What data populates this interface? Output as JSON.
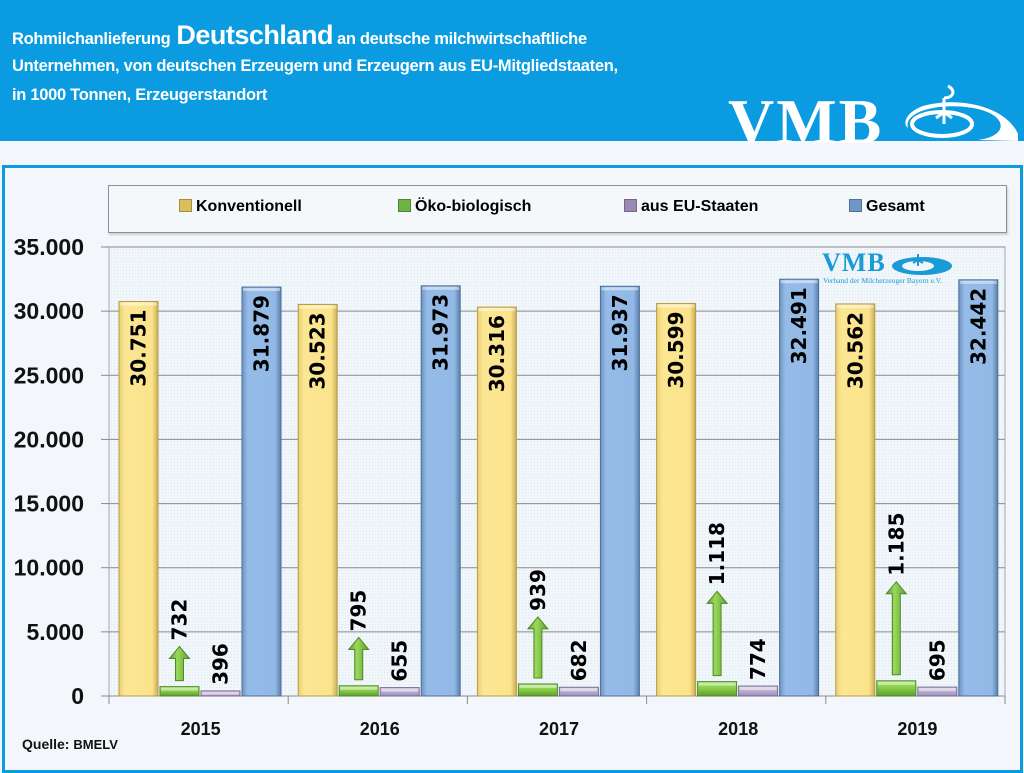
{
  "header": {
    "line1_prefix": "Rohmilchanlieferung",
    "line1_emphasis": "Deutschland",
    "line1_suffix": "an deutsche milchwirtschaftliche",
    "line2": "Unternehmen, von deutschen Erzeugern und Erzeugern aus EU-Mitgliedstaaten,",
    "line3": "in 1000 Tonnen, Erzeugerstandort",
    "logo_text": "VMB"
  },
  "watermark": {
    "logo_text": "VMB",
    "subtitle": "Verband der Milcherzeuger Bayern e.V."
  },
  "source": {
    "label": "Quelle:",
    "name": "BMELV"
  },
  "colors": {
    "header_bg": "#0a9be0",
    "konventionell": "#f9e08a",
    "oeko": "#8fd14f",
    "eu": "#c3b5d8",
    "gesamt": "#93b9e6"
  },
  "chart_data": {
    "type": "bar",
    "title": "Rohmilchanlieferung Deutschland an deutsche milchwirtschaftliche Unternehmen, von deutschen Erzeugern und Erzeugern aus EU-Mitgliedstaaten, in 1000 Tonnen, Erzeugerstandort",
    "xlabel": "",
    "ylabel": "",
    "categories": [
      "2015",
      "2016",
      "2017",
      "2018",
      "2019"
    ],
    "series": [
      {
        "name": "Konventionell",
        "values": [
          30751,
          30523,
          30316,
          30599,
          30562
        ],
        "labels": [
          "30.751",
          "30.523",
          "30.316",
          "30.599",
          "30.562"
        ],
        "color": "#f9e08a"
      },
      {
        "name": "Öko-biologisch",
        "values": [
          732,
          795,
          939,
          1118,
          1185
        ],
        "labels": [
          "732",
          "795",
          "939",
          "1.118",
          "1.185"
        ],
        "color": "#8fd14f"
      },
      {
        "name": "aus EU-Staaten",
        "values": [
          396,
          655,
          682,
          774,
          695
        ],
        "labels": [
          "396",
          "655",
          "682",
          "774",
          "695"
        ],
        "color": "#c3b5d8"
      },
      {
        "name": "Gesamt",
        "values": [
          31879,
          31973,
          31937,
          32491,
          32442
        ],
        "labels": [
          "31.879",
          "31.973",
          "31.937",
          "32.491",
          "32.442"
        ],
        "color": "#93b9e6"
      }
    ],
    "ylim": [
      0,
      35000
    ],
    "yticks": [
      0,
      5000,
      10000,
      15000,
      20000,
      25000,
      30000,
      35000
    ],
    "ytick_labels": [
      "0",
      "5.000",
      "10.000",
      "15.000",
      "20.000",
      "25.000",
      "30.000",
      "35.000"
    ],
    "grid": true,
    "legend_position": "top",
    "annotations": [
      "Green up-arrows above Öko-biologisch bars indicate growth"
    ]
  }
}
